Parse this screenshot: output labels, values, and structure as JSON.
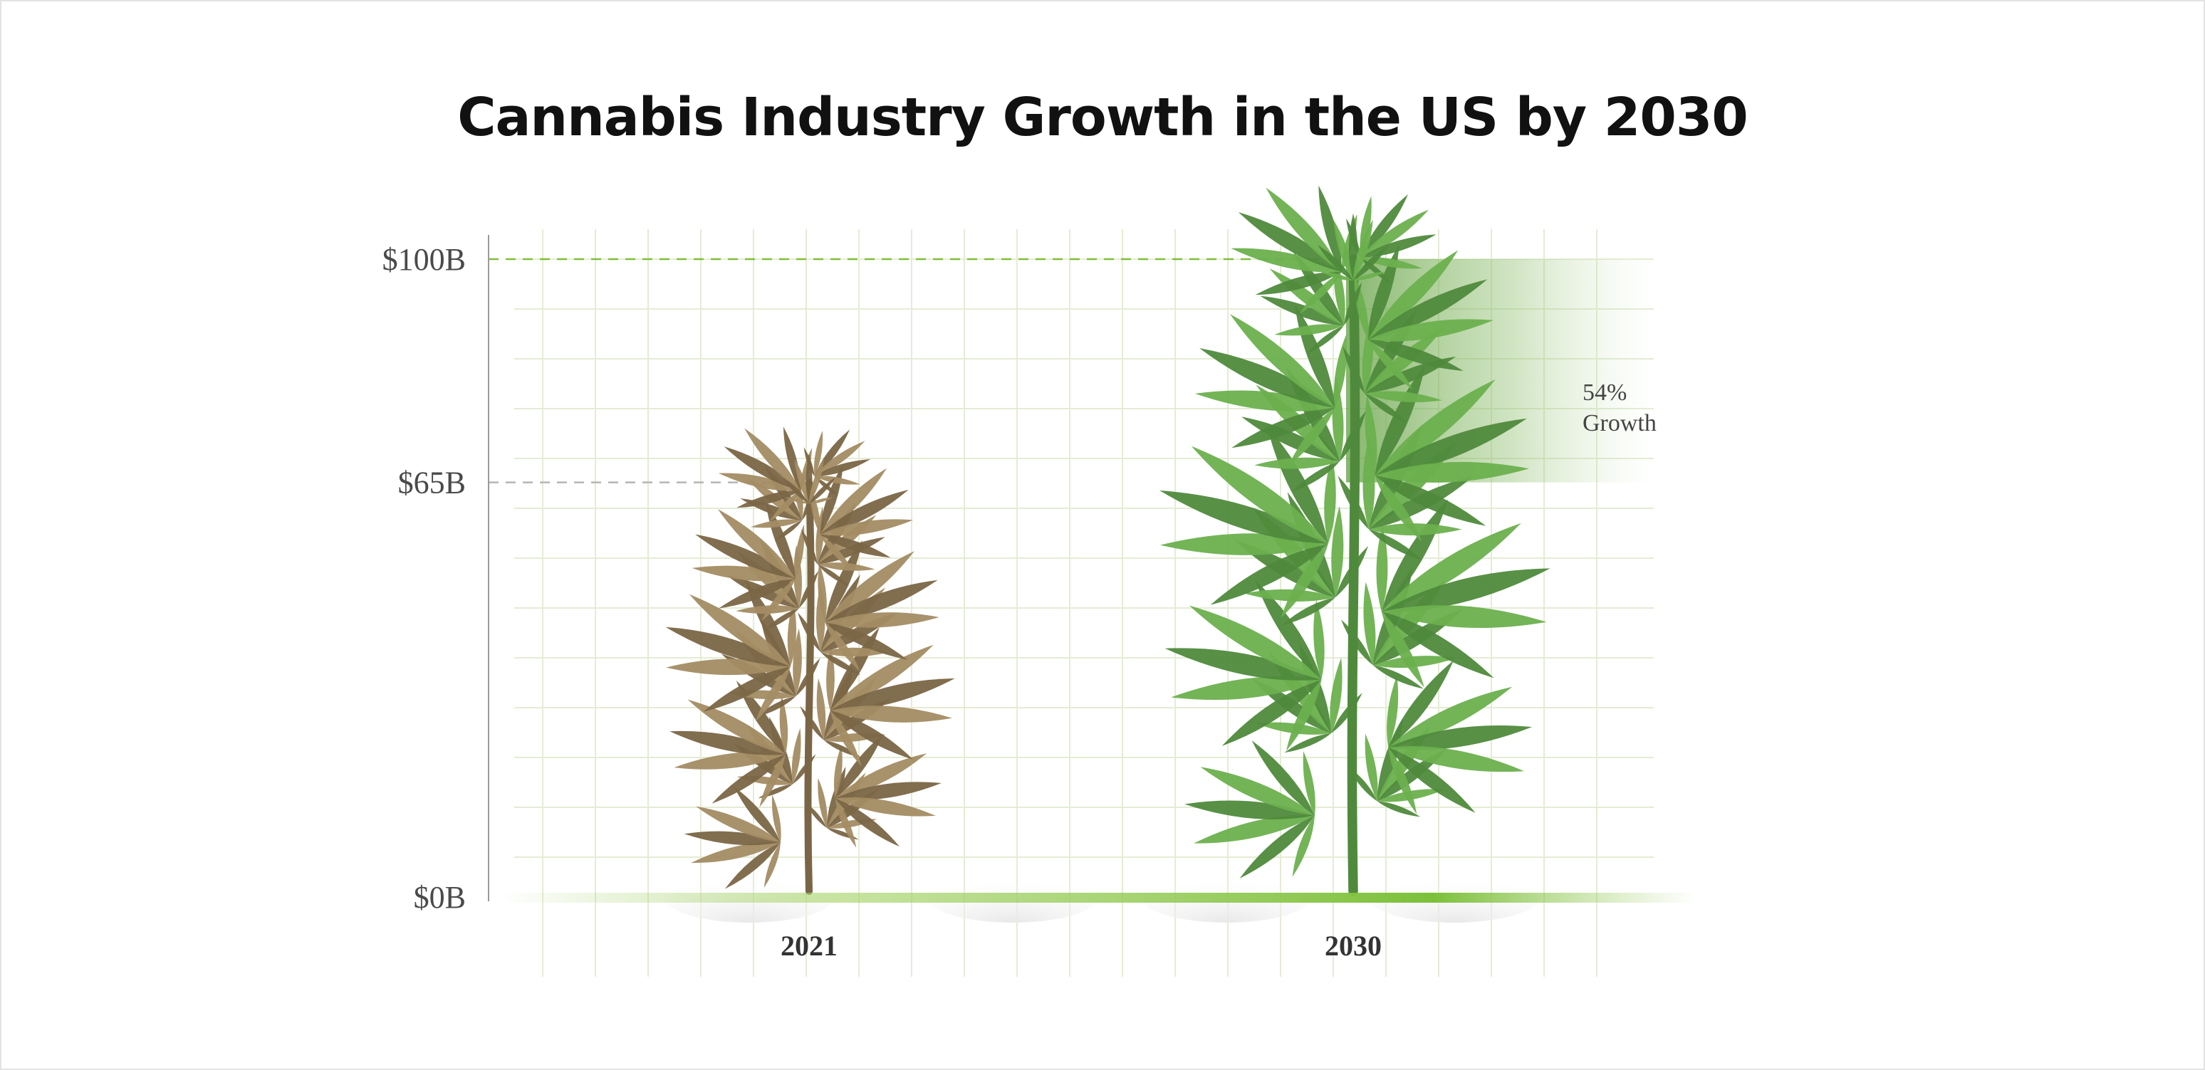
{
  "title": "Cannabis Industry Growth in the US by 2030",
  "colors": {
    "accent": "#7fbf3a",
    "plant_2021": "#a38c63",
    "plant_2021_dark": "#7a6646",
    "plant_2030": "#4f8a3c",
    "plant_2030_light": "#6bb04e",
    "grid": "#e4ecd4"
  },
  "chart_data": {
    "type": "bar",
    "categories": [
      "2021",
      "2030"
    ],
    "values": [
      65,
      100
    ],
    "ylim": [
      0,
      100
    ],
    "yticks": [
      {
        "value": 0,
        "label": "$0B"
      },
      {
        "value": 65,
        "label": "$65B"
      },
      {
        "value": 100,
        "label": "$100B"
      }
    ],
    "annotation": {
      "line1": "54%",
      "line2": "Growth"
    },
    "grid": true,
    "marks": "cannabis plant illustrations"
  }
}
